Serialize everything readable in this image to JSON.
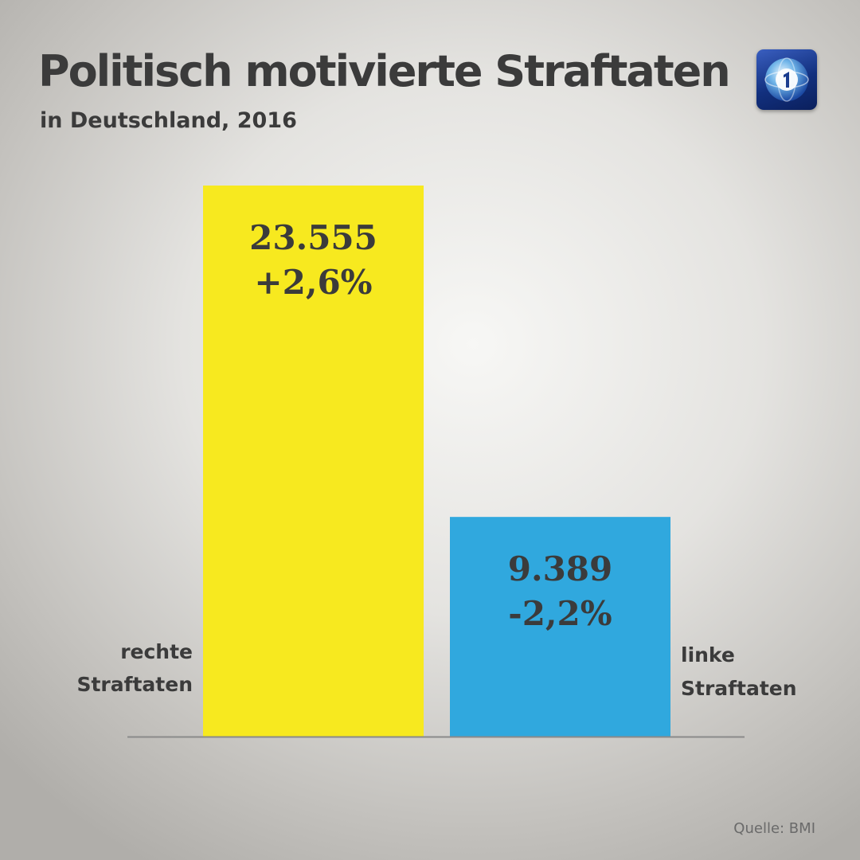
{
  "header": {
    "title": "Politisch motivierte Straftaten",
    "subtitle": "in Deutschland, 2016"
  },
  "logo": {
    "icon": "tagesschau-globe-logo"
  },
  "source": "Quelle: BMI",
  "colors": {
    "rechte": "#f7e91f",
    "linke": "#30a8de",
    "baseline": "#8a8a8a"
  },
  "chart_data": {
    "type": "bar",
    "title": "Politisch motivierte Straftaten",
    "subtitle": "in Deutschland, 2016",
    "categories": [
      {
        "lines": [
          "rechte",
          "Straftaten"
        ],
        "value": 23555,
        "value_label": "23.555",
        "change_label": "+2,6%"
      },
      {
        "lines": [
          "linke",
          "Straftaten"
        ],
        "value": 9389,
        "value_label": "9.389",
        "change_label": "-2,2%"
      }
    ],
    "values": [
      23555,
      9389
    ],
    "changes": [
      "+2,6%",
      "-2,2%"
    ],
    "ylim": [
      0,
      23555
    ],
    "grid": false,
    "legend": "none"
  }
}
